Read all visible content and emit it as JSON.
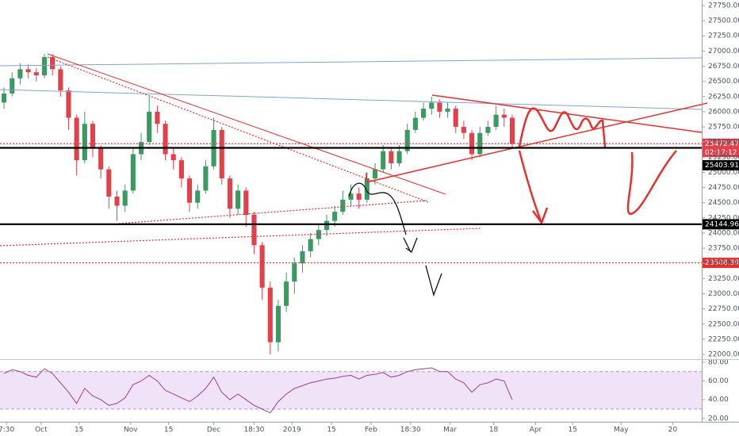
{
  "chart_data": {
    "type": "candlestick",
    "xlim": [
      0,
      87
    ],
    "xticks": [
      {
        "value": 0.8,
        "label": "7:30"
      },
      {
        "value": 5.1,
        "label": "Oct"
      },
      {
        "value": 9.8,
        "label": "15"
      },
      {
        "value": 16.2,
        "label": "Nov"
      },
      {
        "value": 20.9,
        "label": "15"
      },
      {
        "value": 26.5,
        "label": "Dec"
      },
      {
        "value": 31.5,
        "label": "18:30"
      },
      {
        "value": 36.2,
        "label": "2019"
      },
      {
        "value": 41.1,
        "label": "15"
      },
      {
        "value": 46,
        "label": "Feb"
      },
      {
        "value": 50.9,
        "label": "18:30"
      },
      {
        "value": 55.8,
        "label": "Mar"
      },
      {
        "value": 61.2,
        "label": "18"
      },
      {
        "value": 66.4,
        "label": "Apr"
      },
      {
        "value": 71,
        "label": "15"
      },
      {
        "value": 77,
        "label": "May"
      },
      {
        "value": 83.4,
        "label": "20"
      }
    ],
    "candles": {
      "open": [
        26150,
        26300,
        26550,
        26700,
        26650,
        26600,
        26900,
        26700,
        26350,
        25900,
        25200,
        25800,
        25400,
        25050,
        24600,
        24450,
        24700,
        25300,
        25500,
        26000,
        25800,
        25300,
        25200,
        24900,
        24500,
        24700,
        25100,
        25700,
        24900,
        24400,
        24700,
        24300,
        23800,
        23100,
        22200,
        22800,
        23200,
        23500,
        23700,
        23900,
        24050,
        24200,
        24350,
        24550,
        24650,
        24550,
        24900,
        25050,
        25350,
        25150,
        25350,
        25700,
        25900,
        26050,
        26150,
        26000,
        26050,
        25750,
        25650,
        25300,
        25650,
        25750,
        25950,
        25900
      ],
      "high": [
        26400,
        26650,
        26800,
        26780,
        26720,
        26950,
        26950,
        26750,
        26400,
        25950,
        26000,
        25850,
        25450,
        25100,
        24700,
        24800,
        25400,
        25650,
        26250,
        26100,
        25850,
        25400,
        25250,
        24950,
        24800,
        25200,
        25900,
        25750,
        24950,
        24800,
        24750,
        24350,
        23850,
        23200,
        22900,
        23350,
        23600,
        23800,
        24000,
        24150,
        24300,
        24450,
        24700,
        24800,
        24750,
        25000,
        25150,
        25450,
        25400,
        25450,
        25800,
        26000,
        26150,
        26250,
        26200,
        26150,
        26100,
        25850,
        25700,
        25750,
        25850,
        26100,
        26050,
        25950
      ],
      "low": [
        26050,
        26250,
        26450,
        26550,
        26500,
        26550,
        26600,
        26250,
        25700,
        24950,
        25150,
        25250,
        24900,
        24400,
        24200,
        24350,
        24650,
        25200,
        25450,
        25650,
        25200,
        25050,
        24750,
        24350,
        24400,
        24650,
        25050,
        24800,
        24250,
        24300,
        24100,
        23650,
        22900,
        22000,
        22050,
        22700,
        23000,
        23350,
        23600,
        23800,
        23950,
        24100,
        24300,
        24450,
        24400,
        24500,
        24800,
        25000,
        25050,
        25100,
        25300,
        25650,
        25850,
        25950,
        25900,
        25900,
        25650,
        25550,
        25200,
        25250,
        25600,
        25700,
        25750,
        25420
      ],
      "close": [
        26300,
        26550,
        26700,
        26650,
        26600,
        26900,
        26700,
        26350,
        25900,
        25200,
        25800,
        25400,
        25050,
        24600,
        24450,
        24700,
        25300,
        25500,
        26000,
        25800,
        25300,
        25200,
        24900,
        24500,
        24700,
        25100,
        25700,
        24900,
        24400,
        24700,
        24300,
        23800,
        23100,
        22200,
        22800,
        23200,
        23500,
        23700,
        23900,
        24050,
        24200,
        24350,
        24550,
        24650,
        24550,
        24900,
        25050,
        25350,
        25150,
        25350,
        25700,
        25900,
        26050,
        26150,
        26000,
        26050,
        25750,
        25650,
        25300,
        25650,
        25750,
        25950,
        25900,
        25470
      ]
    },
    "up_color": "#3a9a62",
    "down_color": "#e0414b",
    "ylim": [
      21935,
      27841
    ],
    "yticks": [
      {
        "value": 22000,
        "label": "22000.00"
      },
      {
        "value": 22250,
        "label": "22250.00"
      },
      {
        "value": 22500,
        "label": "22500.00"
      },
      {
        "value": 22750,
        "label": "22750.00"
      },
      {
        "value": 23000,
        "label": "23000.00"
      },
      {
        "value": 23250,
        "label": "23250.00"
      },
      {
        "value": 23500,
        "label": "23500.00"
      },
      {
        "value": 23750,
        "label": "23750.00"
      },
      {
        "value": 24000,
        "label": "24000.00"
      },
      {
        "value": 24250,
        "label": "24250.00"
      },
      {
        "value": 24500,
        "label": "24500.00"
      },
      {
        "value": 24750,
        "label": "24750.00"
      },
      {
        "value": 25000,
        "label": "25000.00"
      },
      {
        "value": 25250,
        "label": "25250.00"
      },
      {
        "value": 25500,
        "label": "25500.00"
      },
      {
        "value": 25750,
        "label": "25750.00"
      },
      {
        "value": 26000,
        "label": "26000.00"
      },
      {
        "value": 26250,
        "label": "26250.00"
      },
      {
        "value": 26500,
        "label": "26500.00"
      },
      {
        "value": 26750,
        "label": "26750.00"
      },
      {
        "value": 27000,
        "label": "27000.00"
      },
      {
        "value": 27250,
        "label": "27250.00"
      },
      {
        "value": 27500,
        "label": "27500.00"
      },
      {
        "value": 27750,
        "label": "27750.00"
      }
    ],
    "price_levels": [
      {
        "value": 25472.47,
        "color": "#e0414b",
        "style": "dotted"
      },
      {
        "value": 25403.91,
        "color": "#000000",
        "style": "solid"
      },
      {
        "value": 24144.96,
        "color": "#000000",
        "style": "solid"
      },
      {
        "value": 23508.39,
        "color": "#e8302f",
        "style": "dotted"
      }
    ],
    "countdown": "02:17:12",
    "rsi": {
      "color": "#9c3d9c",
      "band_color": "#ead7f5",
      "band": [
        30,
        70
      ],
      "ylim": [
        16,
        85
      ],
      "yticks": [
        {
          "value": 20,
          "label": "20.00"
        },
        {
          "value": 40,
          "label": "40.00"
        },
        {
          "value": 60,
          "label": "60.00"
        },
        {
          "value": 80,
          "label": "80.00"
        }
      ],
      "values": [
        68,
        72,
        70,
        66,
        64,
        73,
        68,
        58,
        48,
        36,
        52,
        44,
        40,
        34,
        36,
        42,
        56,
        60,
        66,
        60,
        50,
        46,
        42,
        38,
        44,
        52,
        64,
        48,
        40,
        46,
        40,
        34,
        30,
        26,
        38,
        46,
        52,
        55,
        58,
        60,
        62,
        63,
        65,
        66,
        62,
        66,
        67,
        69,
        64,
        66,
        70,
        72,
        73,
        74,
        70,
        70,
        62,
        58,
        48,
        56,
        58,
        62,
        60,
        40
      ]
    }
  }
}
